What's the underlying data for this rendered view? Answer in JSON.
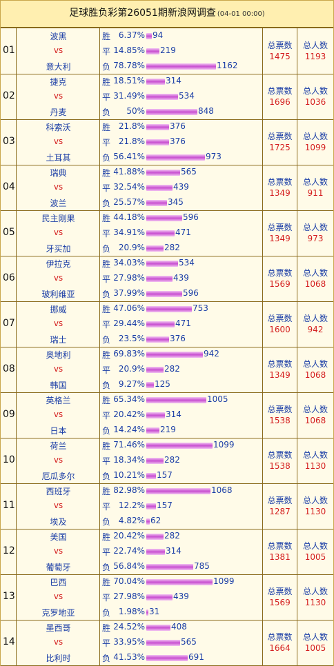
{
  "header": {
    "title": "足球胜负彩第26051期新浪网调查",
    "time": "(04-01 00:00)"
  },
  "labels": {
    "win": "胜",
    "draw": "平",
    "loss": "负",
    "total_votes": "总票数",
    "total_people": "总人数"
  },
  "rows": [
    {
      "no": "01",
      "home": "波黑",
      "vs": "vs",
      "away": "意大利",
      "win": {
        "pct": "6.37%",
        "count": "94"
      },
      "draw": {
        "pct": "14.85%",
        "count": "219"
      },
      "loss": {
        "pct": "78.78%",
        "count": "1162"
      },
      "total_votes": "1475",
      "total_people": "1193"
    },
    {
      "no": "02",
      "home": "捷克",
      "vs": "vs",
      "away": "丹麦",
      "win": {
        "pct": "18.51%",
        "count": "314"
      },
      "draw": {
        "pct": "31.49%",
        "count": "534"
      },
      "loss": {
        "pct": "50%",
        "count": "848"
      },
      "total_votes": "1696",
      "total_people": "1036"
    },
    {
      "no": "03",
      "home": "科索沃",
      "vs": "vs",
      "away": "土耳其",
      "win": {
        "pct": "21.8%",
        "count": "376"
      },
      "draw": {
        "pct": "21.8%",
        "count": "376"
      },
      "loss": {
        "pct": "56.41%",
        "count": "973"
      },
      "total_votes": "1725",
      "total_people": "1099"
    },
    {
      "no": "04",
      "home": "瑞典",
      "vs": "vs",
      "away": "波兰",
      "win": {
        "pct": "41.88%",
        "count": "565"
      },
      "draw": {
        "pct": "32.54%",
        "count": "439"
      },
      "loss": {
        "pct": "25.57%",
        "count": "345"
      },
      "total_votes": "1349",
      "total_people": "911"
    },
    {
      "no": "05",
      "home": "民主刚果",
      "vs": "vs",
      "away": "牙买加",
      "win": {
        "pct": "44.18%",
        "count": "596"
      },
      "draw": {
        "pct": "34.91%",
        "count": "471"
      },
      "loss": {
        "pct": "20.9%",
        "count": "282"
      },
      "total_votes": "1349",
      "total_people": "973"
    },
    {
      "no": "06",
      "home": "伊拉克",
      "vs": "vs",
      "away": "玻利维亚",
      "win": {
        "pct": "34.03%",
        "count": "534"
      },
      "draw": {
        "pct": "27.98%",
        "count": "439"
      },
      "loss": {
        "pct": "37.99%",
        "count": "596"
      },
      "total_votes": "1569",
      "total_people": "1068"
    },
    {
      "no": "07",
      "home": "挪威",
      "vs": "vs",
      "away": "瑞士",
      "win": {
        "pct": "47.06%",
        "count": "753"
      },
      "draw": {
        "pct": "29.44%",
        "count": "471"
      },
      "loss": {
        "pct": "23.5%",
        "count": "376"
      },
      "total_votes": "1600",
      "total_people": "942"
    },
    {
      "no": "08",
      "home": "奥地利",
      "vs": "vs",
      "away": "韩国",
      "win": {
        "pct": "69.83%",
        "count": "942"
      },
      "draw": {
        "pct": "20.9%",
        "count": "282"
      },
      "loss": {
        "pct": "9.27%",
        "count": "125"
      },
      "total_votes": "1349",
      "total_people": "1068"
    },
    {
      "no": "09",
      "home": "英格兰",
      "vs": "vs",
      "away": "日本",
      "win": {
        "pct": "65.34%",
        "count": "1005"
      },
      "draw": {
        "pct": "20.42%",
        "count": "314"
      },
      "loss": {
        "pct": "14.24%",
        "count": "219"
      },
      "total_votes": "1538",
      "total_people": "1068"
    },
    {
      "no": "10",
      "home": "荷兰",
      "vs": "vs",
      "away": "厄瓜多尔",
      "win": {
        "pct": "71.46%",
        "count": "1099"
      },
      "draw": {
        "pct": "18.34%",
        "count": "282"
      },
      "loss": {
        "pct": "10.21%",
        "count": "157"
      },
      "total_votes": "1538",
      "total_people": "1130"
    },
    {
      "no": "11",
      "home": "西班牙",
      "vs": "vs",
      "away": "埃及",
      "win": {
        "pct": "82.98%",
        "count": "1068"
      },
      "draw": {
        "pct": "12.2%",
        "count": "157"
      },
      "loss": {
        "pct": "4.82%",
        "count": "62"
      },
      "total_votes": "1287",
      "total_people": "1130"
    },
    {
      "no": "12",
      "home": "美国",
      "vs": "vs",
      "away": "葡萄牙",
      "win": {
        "pct": "20.42%",
        "count": "282"
      },
      "draw": {
        "pct": "22.74%",
        "count": "314"
      },
      "loss": {
        "pct": "56.84%",
        "count": "785"
      },
      "total_votes": "1381",
      "total_people": "1005"
    },
    {
      "no": "13",
      "home": "巴西",
      "vs": "vs",
      "away": "克罗地亚",
      "win": {
        "pct": "70.04%",
        "count": "1099"
      },
      "draw": {
        "pct": "27.98%",
        "count": "439"
      },
      "loss": {
        "pct": "1.98%",
        "count": "31"
      },
      "total_votes": "1569",
      "total_people": "1130"
    },
    {
      "no": "14",
      "home": "墨西哥",
      "vs": "vs",
      "away": "比利时",
      "win": {
        "pct": "24.52%",
        "count": "408"
      },
      "draw": {
        "pct": "33.95%",
        "count": "565"
      },
      "loss": {
        "pct": "41.53%",
        "count": "691"
      },
      "total_votes": "1664",
      "total_people": "1005"
    }
  ]
}
